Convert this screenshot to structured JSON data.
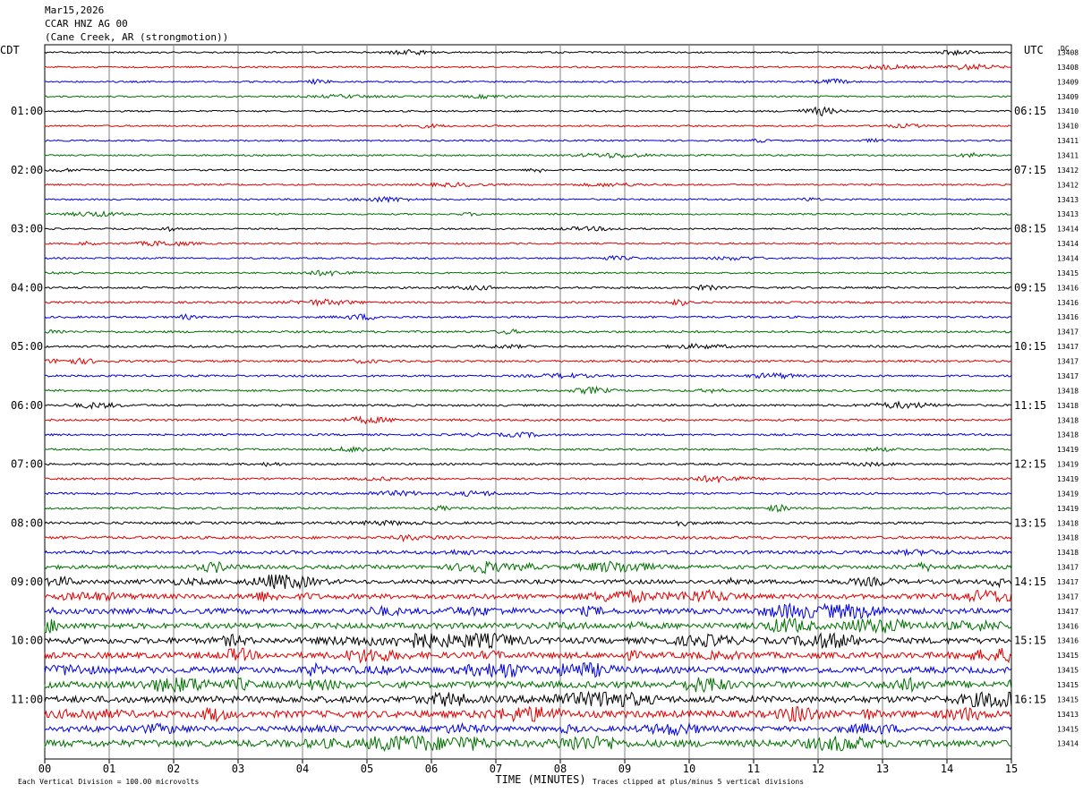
{
  "header": {
    "date": "Mar15,2026",
    "station": "CCAR HNZ AG 00",
    "location": "(Cane Creek, AR (strongmotion))"
  },
  "chart_data": {
    "type": "line",
    "title": "Mar15,2026",
    "xlabel": "TIME (MINUTES)",
    "ylabel": "",
    "left_axis_title": "CDT",
    "right_axis_title": "UTC",
    "dc_title": "DC",
    "xlim": [
      0,
      15
    ],
    "x_ticks": [
      "00",
      "01",
      "02",
      "03",
      "04",
      "05",
      "06",
      "07",
      "08",
      "09",
      "10",
      "11",
      "12",
      "13",
      "14",
      "15"
    ],
    "trace_colors": [
      "#000000",
      "#e00000",
      "#0000e0",
      "#007000"
    ],
    "left_hour_labels": [
      "01:00",
      "02:00",
      "03:00",
      "04:00",
      "05:00",
      "06:00",
      "07:00",
      "08:00",
      "09:00",
      "10:00",
      "11:00"
    ],
    "right_hour_labels": [
      "06:15",
      "07:15",
      "08:15",
      "09:15",
      "10:15",
      "11:15",
      "12:15",
      "13:15",
      "14:15",
      "15:15",
      "16:15"
    ],
    "dc_offsets": [
      13408,
      13408,
      13409,
      13409,
      13410,
      13410,
      13411,
      13411,
      13412,
      13412,
      13413,
      13413,
      13414,
      13414,
      13414,
      13415,
      13416,
      13416,
      13416,
      13417,
      13417,
      13417,
      13417,
      13418,
      13418,
      13418,
      13418,
      13419,
      13419,
      13419,
      13419,
      13419,
      13418,
      13418,
      13418,
      13417,
      13417,
      13417,
      13417,
      13416,
      13416,
      13415,
      13415,
      13415,
      13415,
      13413,
      13415,
      13414
    ],
    "noise_amplitude": [
      1,
      1,
      1,
      1,
      1,
      1,
      1,
      1,
      1,
      1,
      1,
      1,
      1,
      1,
      1,
      1,
      1.2,
      1.2,
      1.2,
      1.3,
      1.3,
      1.3,
      1.2,
      1.3,
      1.3,
      1.3,
      1.2,
      1.2,
      1.2,
      1.3,
      1.3,
      1.3,
      1.5,
      1.7,
      2,
      2.3,
      2.5,
      3,
      3.3,
      3.5,
      3.6,
      3.6,
      3.8,
      4,
      4,
      4.2,
      3,
      4.2
    ],
    "footer_scale": "Each Vertical Division =  100.00 microvolts",
    "footer_clip": "Traces clipped at plus/minus 5 vertical divisions"
  }
}
